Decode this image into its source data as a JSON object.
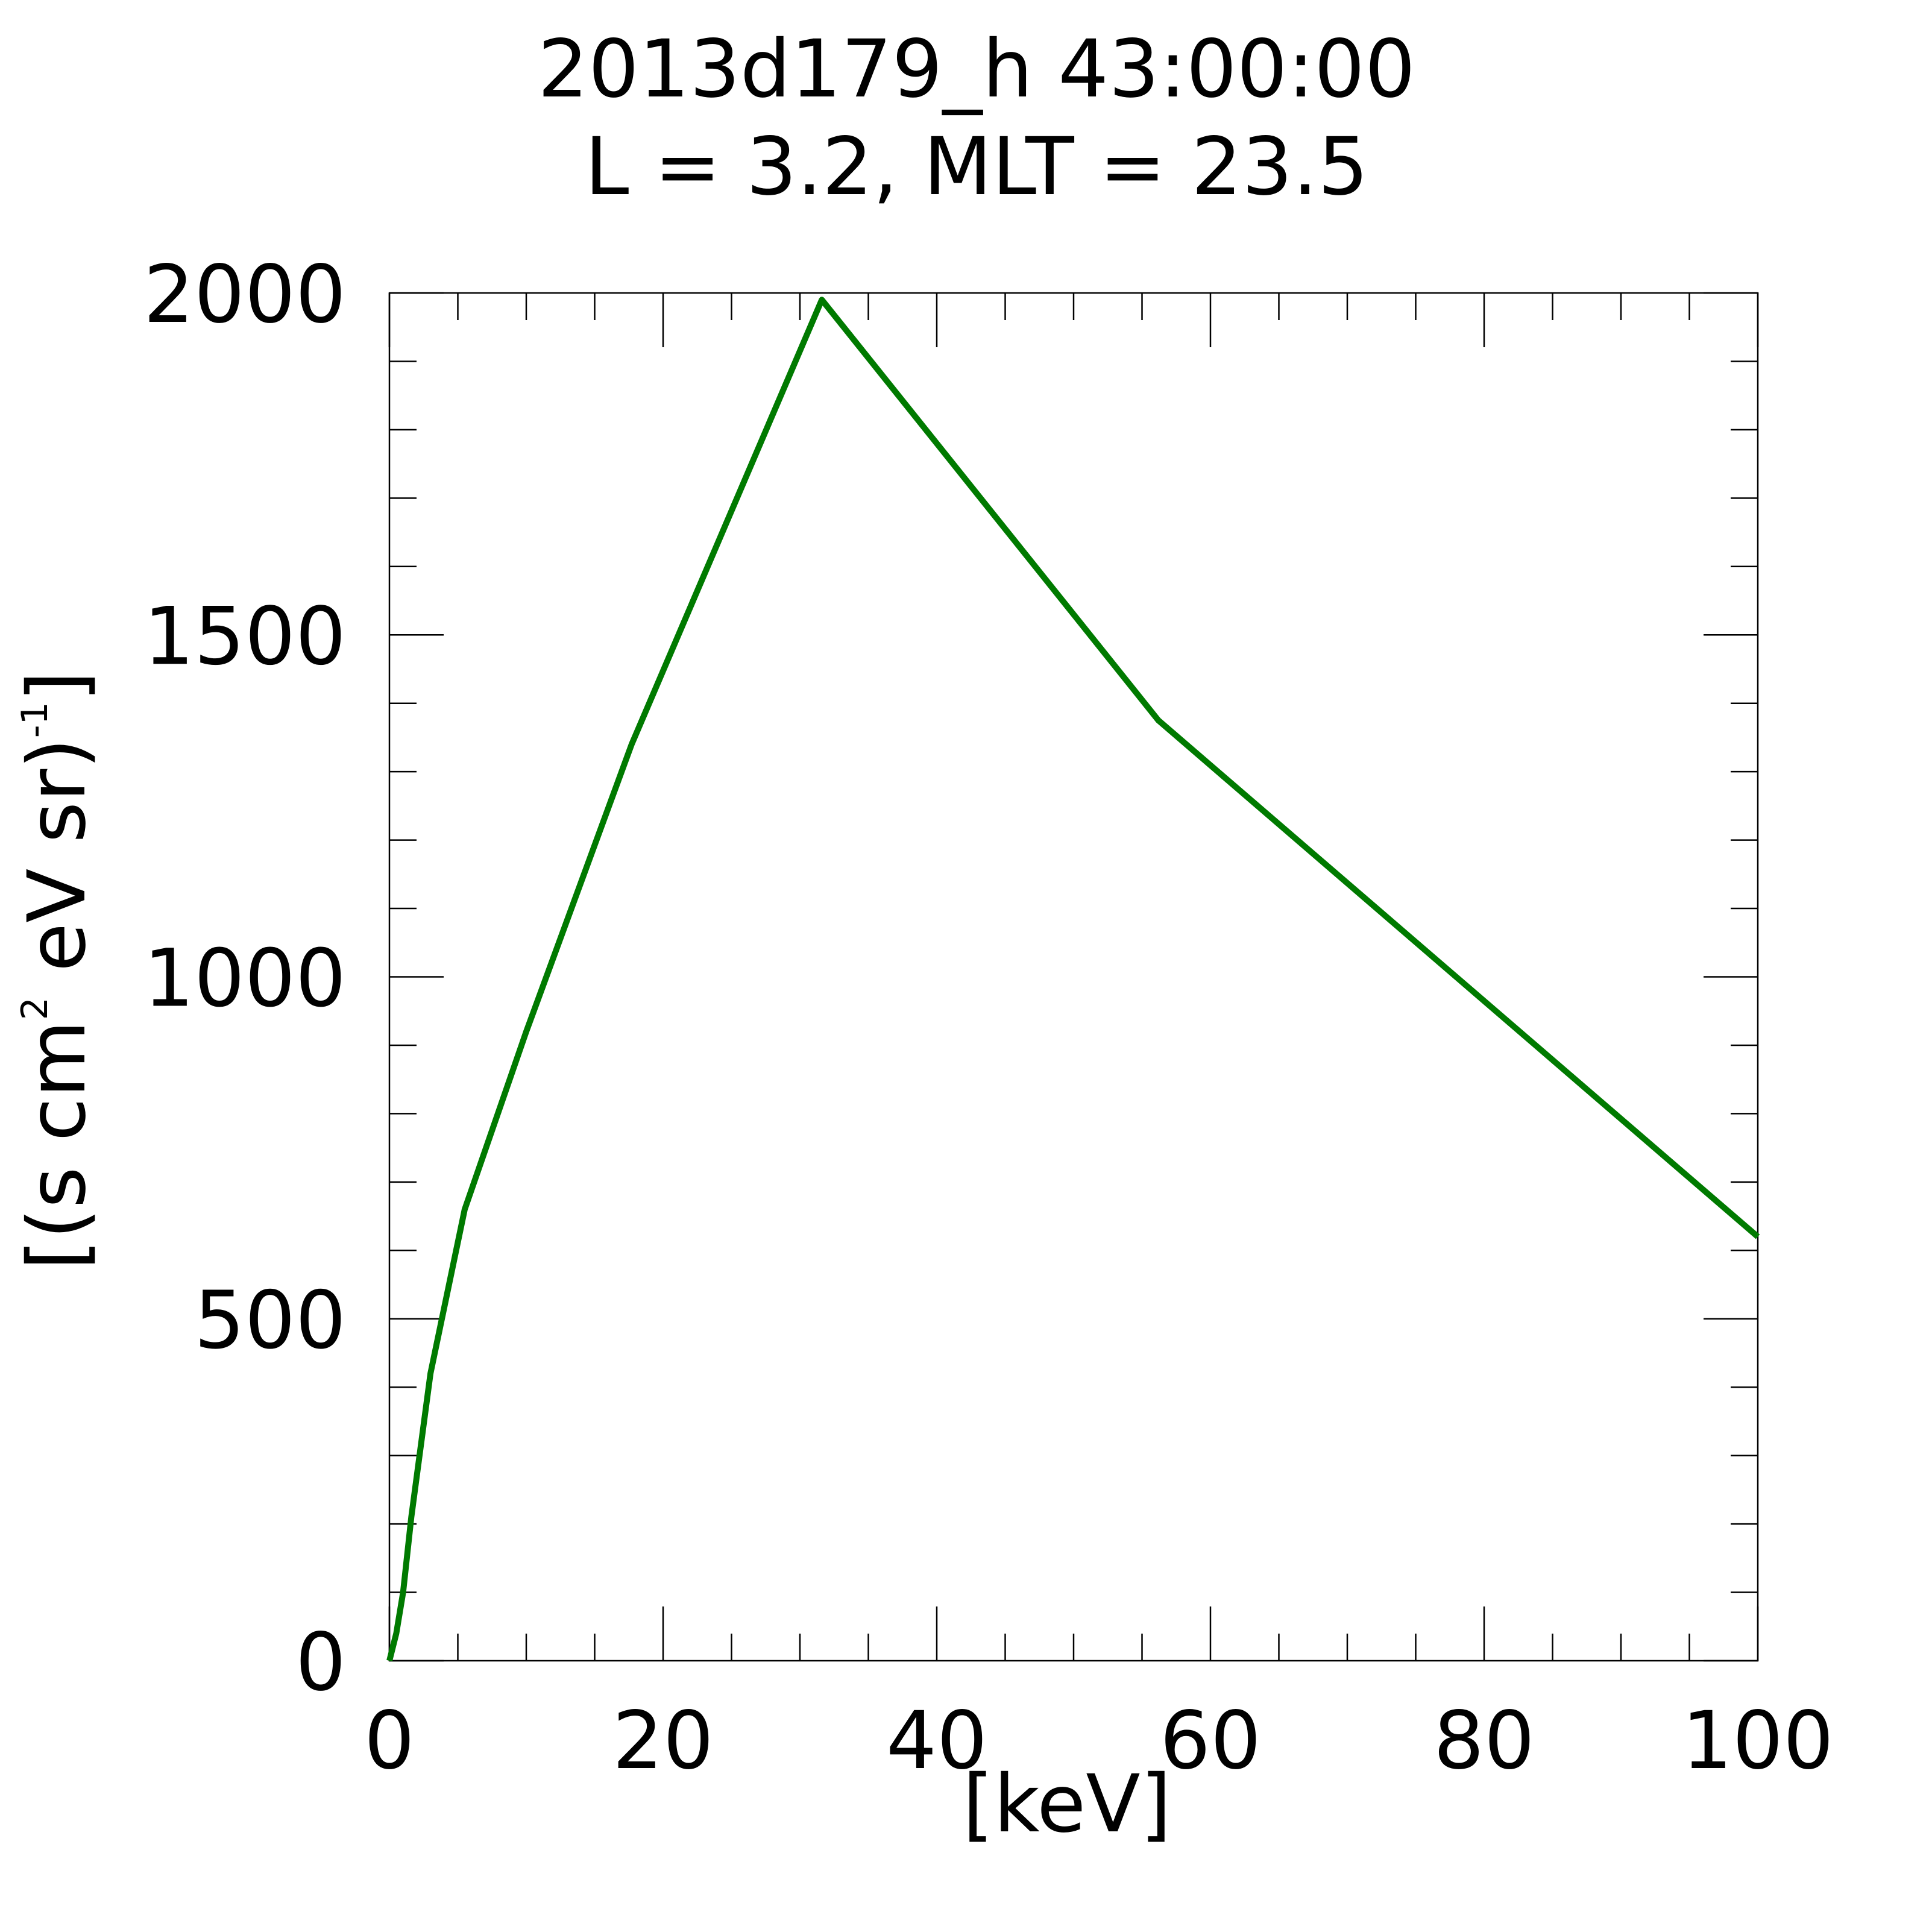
{
  "chart_data": {
    "type": "line",
    "title": "2013d179_h  43:00:00",
    "subtitle": "L = 3.2, MLT = 23.5",
    "xlabel": "[keV]",
    "ylabel": {
      "base": "[(s cm",
      "sup1": "2",
      "mid": " eV sr)",
      "sup2": "-1",
      "end": "]"
    },
    "xlim": [
      0,
      100
    ],
    "ylim": [
      0,
      2000
    ],
    "x_major_ticks": [
      0,
      20,
      40,
      60,
      80,
      100
    ],
    "x_tick_labels": [
      "0",
      "20",
      "40",
      "60",
      "80",
      "100"
    ],
    "x_minor_step": 5,
    "y_major_ticks": [
      0,
      500,
      1000,
      1500,
      2000
    ],
    "y_tick_labels": [
      "0",
      "500",
      "1000",
      "1500",
      "2000"
    ],
    "y_minor_step": 100,
    "grid": false,
    "series": [
      {
        "color": "#007a00",
        "x": [
          0.0,
          0.5,
          1.0,
          1.6,
          3.0,
          5.5,
          10.0,
          17.7,
          31.6,
          56.2,
          100.0
        ],
        "y": [
          0,
          40,
          100,
          210,
          420,
          660,
          920,
          1340,
          1990,
          1375,
          620
        ]
      }
    ]
  }
}
